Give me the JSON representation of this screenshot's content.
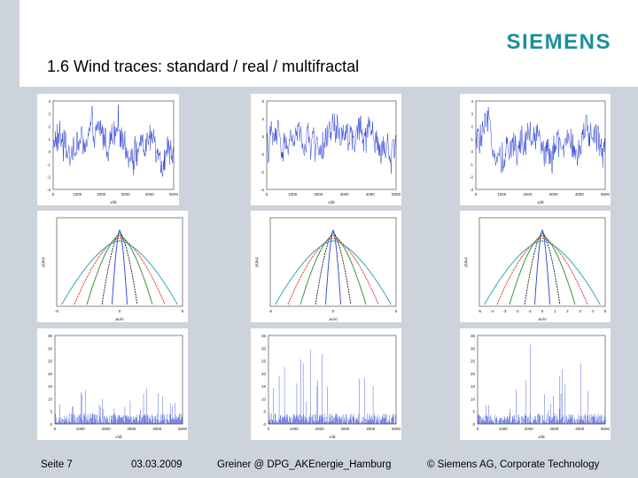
{
  "header": {
    "logo_text": "SIEMENS",
    "title": "1.6  Wind traces:  standard / real / multifractal",
    "brand_color": "#1a8f9c"
  },
  "footer": {
    "page": "Seite 7",
    "date": "03.03.2009",
    "author": "Greiner @ DPG_AKEnergie_Hamburg",
    "copyright": "© Siemens AG, Corporate Technology"
  },
  "panels": {
    "traces": [
      {
        "y_ticks": [
          "4",
          "3",
          "2",
          "1",
          "0",
          "-1",
          "-2",
          "-3"
        ],
        "x_ticks": [
          "0",
          "1000",
          "2000",
          "3000",
          "4000",
          "5000"
        ],
        "xlabel": "x/dt"
      },
      {
        "y_ticks": [
          "6",
          "4",
          "2",
          "0",
          "-2",
          "-4"
        ],
        "x_ticks": [
          "0",
          "1000",
          "2000",
          "3000",
          "4000",
          "5000"
        ],
        "xlabel": "x/dt"
      },
      {
        "y_ticks": [
          "4",
          "3",
          "2",
          "1",
          "0",
          "-1",
          "-2",
          "-3"
        ],
        "x_ticks": [
          "0",
          "1000",
          "2000",
          "3000",
          "4000",
          "5000"
        ],
        "xlabel": "x/dt"
      }
    ],
    "pdfs": [
      {
        "x_ticks": [
          "-5",
          "0",
          "5"
        ],
        "ylabel": "p(Δu)",
        "xlabel": "Δu/σ"
      },
      {
        "x_ticks": [
          "-5",
          "0",
          "5"
        ],
        "ylabel": "p(Δu)",
        "xlabel": "Δu/σ"
      },
      {
        "x_ticks": [
          "-5",
          "-4",
          "-3",
          "-2",
          "-1",
          "0",
          "1",
          "2",
          "3",
          "4",
          "5"
        ],
        "ylabel": "p(Δu)",
        "xlabel": "Δu/σ"
      }
    ],
    "volatility": [
      {
        "y_ticks": [
          "35",
          "30",
          "25",
          "20",
          "15",
          "10",
          "5",
          "0"
        ],
        "x_ticks": [
          "0",
          "1000",
          "2000",
          "3000",
          "4000",
          "5000"
        ],
        "xlabel": "x/dt"
      },
      {
        "y_ticks": [
          "35",
          "30",
          "25",
          "20",
          "15",
          "10",
          "5",
          "0"
        ],
        "x_ticks": [
          "0",
          "1000",
          "2000",
          "3000",
          "4000",
          "5000"
        ],
        "xlabel": "x/dt"
      },
      {
        "y_ticks": [
          "35",
          "30",
          "25",
          "20",
          "15",
          "10",
          "5",
          "0"
        ],
        "x_ticks": [
          "0",
          "1000",
          "2000",
          "3000",
          "4000",
          "5000"
        ],
        "xlabel": "x/dt"
      }
    ],
    "line_colors": [
      "#2a3fd0",
      "#1a1a1a",
      "#2a8a2a",
      "#d02020",
      "#1f9fb0"
    ]
  }
}
